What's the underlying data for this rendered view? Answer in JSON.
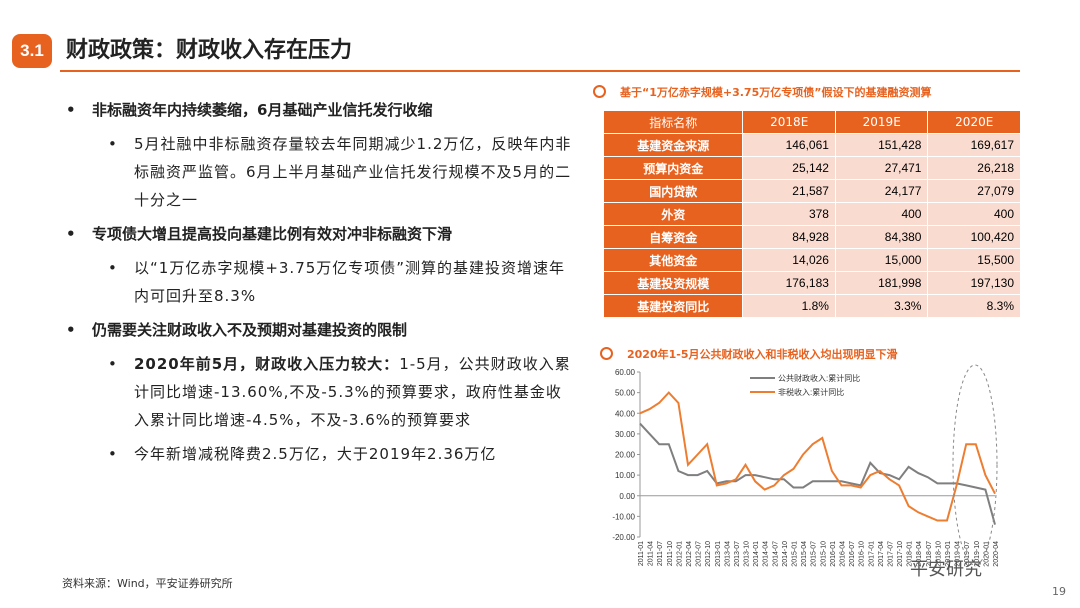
{
  "header": {
    "section": "3.1",
    "title": "财政政策：财政收入存在压力"
  },
  "bullets": [
    {
      "text": "非标融资年内持续萎缩，6月基础产业信托发行收缩",
      "sub": [
        {
          "text": "5月社融中非标融资存量较去年同期减少1.2万亿，反映年内非标融资严监管。6月上半月基础产业信托发行规模不及5月的二十分之一"
        }
      ]
    },
    {
      "text": "专项债大增且提高投向基建比例有效对冲非标融资下滑",
      "sub": [
        {
          "text": "以“1万亿赤字规模+3.75万亿专项债”测算的基建投资增速年内可回升至8.3%"
        }
      ]
    },
    {
      "text": "仍需要关注财政收入不及预期对基建投资的限制",
      "sub": [
        {
          "bold": "2020年前5月，财政收入压力较大：",
          "text": "1-5月，公共财政收入累计同比增速-13.60%,不及-5.3%的预算要求，政府性基金收入累计同比增速-4.5%，不及-3.6%的预算要求"
        },
        {
          "text": "今年新增减税降费2.5万亿，大于2019年2.36万亿"
        }
      ]
    }
  ],
  "table": {
    "title": "基于“1万亿赤字规模+3.75万亿专项债”假设下的基建融资测算",
    "header": [
      "指标名称",
      "2018E",
      "2019E",
      "2020E"
    ],
    "rows": [
      [
        "基建资金来源",
        "146,061",
        "151,428",
        "169,617"
      ],
      [
        "预算内资金",
        "25,142",
        "27,471",
        "26,218"
      ],
      [
        "国内贷款",
        "21,587",
        "24,177",
        "27,079"
      ],
      [
        "外资",
        "378",
        "400",
        "400"
      ],
      [
        "自筹资金",
        "84,928",
        "84,380",
        "100,420"
      ],
      [
        "其他资金",
        "14,026",
        "15,000",
        "15,500"
      ],
      [
        "基建投资规模",
        "176,183",
        "181,998",
        "197,130"
      ],
      [
        "基建投资同比",
        "1.8%",
        "3.3%",
        "8.3%"
      ]
    ]
  },
  "chart_data": {
    "type": "line",
    "title": "2020年1-5月公共财政收入和非税收入均出现明显下滑",
    "categories": [
      "2011-01",
      "2011-04",
      "2011-07",
      "2011-10",
      "2012-01",
      "2012-04",
      "2012-07",
      "2012-10",
      "2013-01",
      "2013-04",
      "2013-07",
      "2013-10",
      "2014-01",
      "2014-04",
      "2014-07",
      "2014-10",
      "2015-01",
      "2015-04",
      "2015-07",
      "2015-10",
      "2016-01",
      "2016-04",
      "2016-07",
      "2016-10",
      "2017-01",
      "2017-04",
      "2017-07",
      "2017-10",
      "2018-01",
      "2018-04",
      "2018-07",
      "2018-10",
      "2019-01",
      "2019-04",
      "2019-07",
      "2019-10",
      "2020-01",
      "2020-04"
    ],
    "series": [
      {
        "name": "公共财政收入:累计同比",
        "color": "#7f7f7f",
        "values": [
          35,
          30,
          25,
          25,
          12,
          10,
          10,
          12,
          6,
          7,
          7,
          10,
          10,
          9,
          8,
          8,
          4,
          4,
          7,
          7,
          7,
          7,
          6,
          5,
          16,
          11,
          10,
          8,
          14,
          11,
          9,
          6,
          6,
          6,
          5,
          4,
          3,
          -14
        ]
      },
      {
        "name": "非税收入:累计同比",
        "color": "#ed7d31",
        "values": [
          40,
          42,
          45,
          50,
          45,
          15,
          20,
          25,
          5,
          6,
          8,
          15,
          7,
          3,
          5,
          10,
          13,
          20,
          25,
          28,
          12,
          5,
          5,
          4,
          10,
          12,
          8,
          5,
          -5,
          -8,
          -10,
          -12,
          -12,
          5,
          25,
          25,
          10,
          1
        ]
      }
    ],
    "ylim": [
      -20,
      60
    ],
    "yticks": [
      {
        "value": -20,
        "label": "-20.00"
      },
      {
        "value": -10,
        "label": "-10.00"
      },
      {
        "value": 0,
        "label": "0.00"
      },
      {
        "value": 10,
        "label": "10.00"
      },
      {
        "value": 20,
        "label": "20.00"
      },
      {
        "value": 30,
        "label": "30.00"
      },
      {
        "value": 40,
        "label": "40.00"
      },
      {
        "value": 50,
        "label": "50.00"
      },
      {
        "value": 60,
        "label": "60.00"
      }
    ]
  },
  "footer": {
    "source": "资料来源：Wind，平安证券研究所",
    "page": "19",
    "watermark": "平安研究"
  }
}
